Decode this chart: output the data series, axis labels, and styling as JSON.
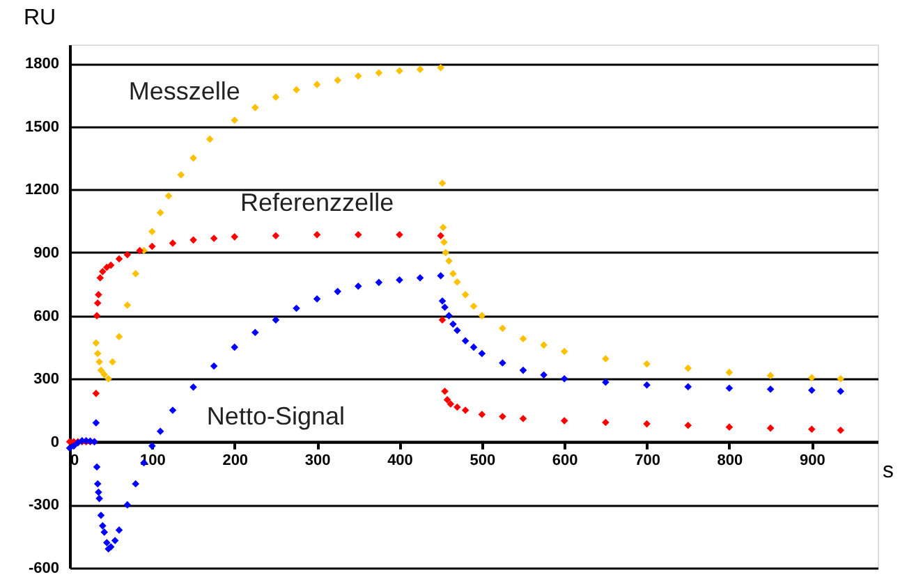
{
  "chart_data": {
    "type": "scatter",
    "marker": "diamond",
    "grid": "y",
    "xlabel": "s",
    "ylabel": "RU",
    "xlim": [
      0,
      980
    ],
    "ylim": [
      -600,
      1890
    ],
    "xticks": [
      0,
      100,
      200,
      300,
      400,
      500,
      600,
      700,
      800,
      900
    ],
    "yticks": [
      -600,
      -300,
      0,
      300,
      600,
      900,
      1200,
      1500,
      1800
    ],
    "series": [
      {
        "name": "Messzelle",
        "color": "#ffc000",
        "x": [
          32,
          34,
          36,
          38,
          42,
          47,
          52,
          60,
          70,
          80,
          90,
          100,
          110,
          120,
          135,
          150,
          170,
          200,
          225,
          250,
          275,
          300,
          325,
          350,
          375,
          400,
          425,
          450,
          452,
          453,
          454,
          456,
          460,
          465,
          470,
          480,
          490,
          500,
          525,
          550,
          575,
          600,
          650,
          700,
          750,
          800,
          850,
          900,
          935
        ],
        "values": [
          470,
          420,
          380,
          340,
          320,
          300,
          380,
          500,
          650,
          800,
          910,
          1000,
          1090,
          1170,
          1270,
          1350,
          1440,
          1530,
          1590,
          1640,
          1675,
          1700,
          1720,
          1740,
          1755,
          1765,
          1772,
          1780,
          1230,
          1020,
          950,
          900,
          860,
          800,
          760,
          700,
          645,
          600,
          540,
          490,
          460,
          430,
          395,
          370,
          350,
          330,
          315,
          305,
          300
        ]
      },
      {
        "name": "Referenzzelle",
        "color": "#ff0000",
        "x": [
          0,
          5,
          10,
          15,
          20,
          25,
          30,
          32,
          33,
          34,
          35,
          37,
          40,
          45,
          50,
          60,
          70,
          85,
          100,
          125,
          150,
          175,
          200,
          250,
          300,
          350,
          400,
          450,
          452,
          455,
          458,
          462,
          470,
          480,
          500,
          525,
          550,
          600,
          650,
          700,
          750,
          800,
          850,
          900,
          935
        ],
        "values": [
          0,
          0,
          0,
          0,
          0,
          0,
          0,
          230,
          600,
          660,
          700,
          780,
          810,
          830,
          840,
          870,
          890,
          910,
          930,
          945,
          960,
          968,
          975,
          980,
          985,
          985,
          985,
          980,
          580,
          240,
          200,
          180,
          165,
          150,
          130,
          120,
          110,
          100,
          92,
          85,
          78,
          70,
          65,
          60,
          55
        ]
      },
      {
        "name": "Netto-Signal",
        "color": "#0000ff",
        "x": [
          0,
          5,
          10,
          15,
          20,
          25,
          30,
          32,
          33,
          34,
          35,
          36,
          38,
          40,
          42,
          45,
          47,
          50,
          55,
          60,
          70,
          80,
          90,
          100,
          110,
          125,
          150,
          175,
          200,
          225,
          250,
          275,
          300,
          325,
          350,
          375,
          400,
          425,
          450,
          452,
          455,
          460,
          465,
          470,
          480,
          490,
          500,
          525,
          550,
          575,
          600,
          650,
          700,
          750,
          800,
          850,
          900,
          935
        ],
        "values": [
          -30,
          -20,
          -5,
          5,
          5,
          3,
          0,
          90,
          -120,
          -200,
          -240,
          -270,
          -350,
          -400,
          -430,
          -480,
          -510,
          -500,
          -470,
          -420,
          -300,
          -200,
          -100,
          -20,
          50,
          150,
          260,
          360,
          450,
          520,
          580,
          635,
          680,
          715,
          740,
          758,
          770,
          780,
          790,
          670,
          640,
          600,
          560,
          530,
          480,
          450,
          420,
          375,
          340,
          318,
          300,
          283,
          270,
          262,
          255,
          250,
          245,
          240
        ]
      }
    ]
  }
}
